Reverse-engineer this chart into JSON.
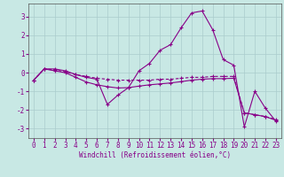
{
  "xlabel": "Windchill (Refroidissement éolien,°C)",
  "background_color": "#c8e8e4",
  "line_color": "#880088",
  "grid_color": "#aacccc",
  "x_values": [
    0,
    1,
    2,
    3,
    4,
    5,
    6,
    7,
    8,
    9,
    10,
    11,
    12,
    13,
    14,
    15,
    16,
    17,
    18,
    19,
    20,
    21,
    22,
    23
  ],
  "series1": [
    -0.4,
    0.2,
    0.2,
    0.1,
    -0.1,
    -0.25,
    -0.35,
    -1.7,
    -1.2,
    -0.8,
    0.1,
    0.5,
    1.2,
    1.5,
    2.4,
    3.2,
    3.3,
    2.3,
    0.7,
    0.4,
    -2.9,
    -1.0,
    -1.9,
    -2.6
  ],
  "series2": [
    -0.4,
    0.2,
    0.15,
    0.05,
    -0.1,
    -0.2,
    -0.3,
    -0.35,
    -0.4,
    -0.4,
    -0.4,
    -0.4,
    -0.35,
    -0.35,
    -0.3,
    -0.25,
    -0.25,
    -0.2,
    -0.2,
    -0.2,
    -2.15,
    -2.25,
    -2.35,
    -2.5
  ],
  "series3": [
    -0.4,
    0.2,
    0.1,
    0.0,
    -0.25,
    -0.5,
    -0.65,
    -0.75,
    -0.82,
    -0.8,
    -0.72,
    -0.65,
    -0.6,
    -0.55,
    -0.48,
    -0.4,
    -0.35,
    -0.32,
    -0.32,
    -0.3,
    -2.15,
    -2.25,
    -2.35,
    -2.55
  ],
  "ylim": [
    -3.5,
    3.7
  ],
  "yticks": [
    -3,
    -2,
    -1,
    0,
    1,
    2,
    3
  ],
  "xticks": [
    0,
    1,
    2,
    3,
    4,
    5,
    6,
    7,
    8,
    9,
    10,
    11,
    12,
    13,
    14,
    15,
    16,
    17,
    18,
    19,
    20,
    21,
    22,
    23
  ],
  "xlabel_fontsize": 5.5,
  "tick_fontsize": 5.5
}
